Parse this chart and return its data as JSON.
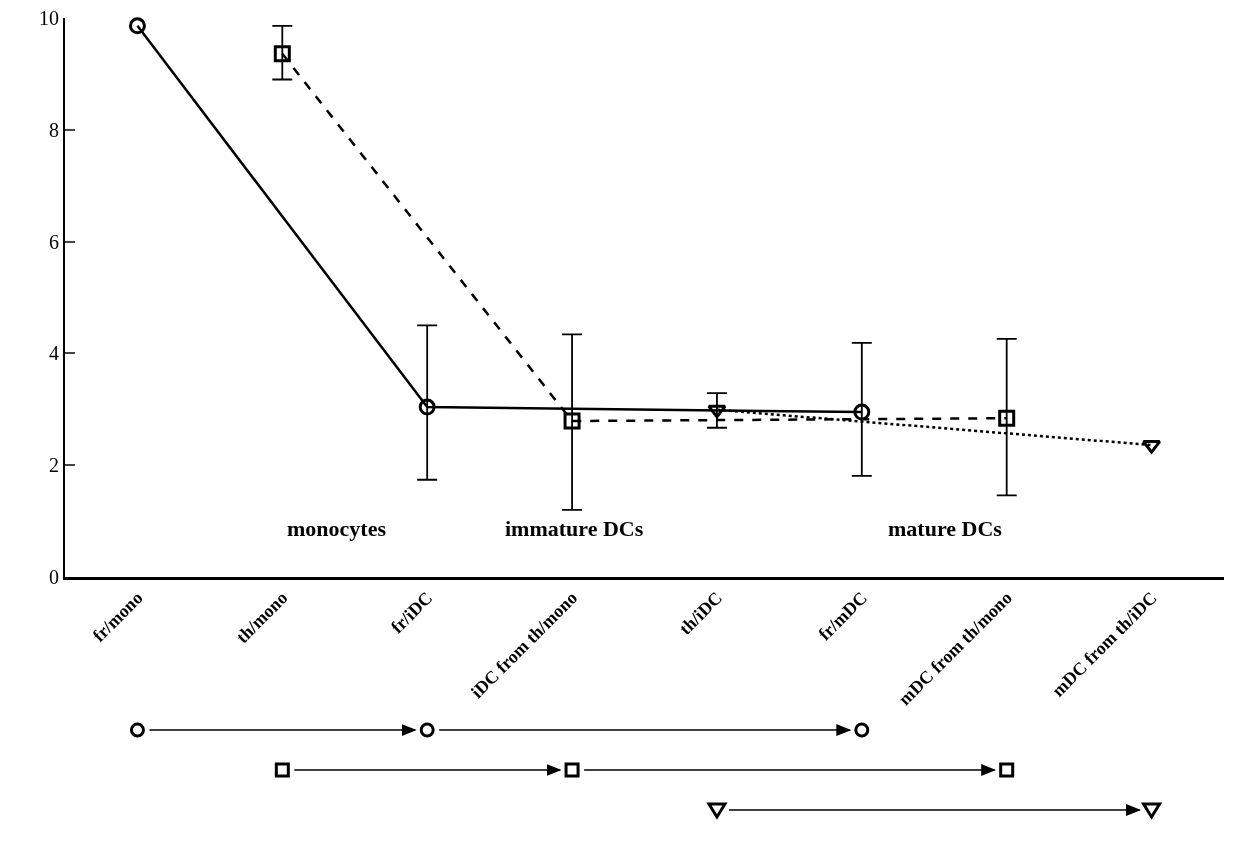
{
  "chart_data": {
    "type": "line",
    "categories": [
      "fr/mono",
      "th/mono",
      "fr/iDC",
      "iDC from th/mono",
      "th/iDC",
      "fr/mDC",
      "mDC from th/mono",
      "mDC from th/iDC"
    ],
    "series": [
      {
        "color": "#000000",
        "marker": "circle",
        "line_style": "solid",
        "values": [
          9.86,
          null,
          3.04,
          null,
          null,
          2.95,
          null,
          null
        ],
        "errors": [
          null,
          null,
          [
            1.74,
            4.5
          ],
          null,
          null,
          [
            1.81,
            4.19
          ],
          null,
          null
        ]
      },
      {
        "color": "#000000",
        "marker": "square",
        "line_style": "dashed",
        "values": [
          null,
          9.36,
          null,
          2.79,
          null,
          null,
          2.84,
          null
        ],
        "errors": [
          null,
          [
            8.9,
            9.86
          ],
          null,
          [
            1.2,
            4.34
          ],
          null,
          null,
          [
            1.46,
            4.26
          ],
          null
        ]
      },
      {
        "color": "#000000",
        "marker": "triangle",
        "line_style": "dotted",
        "values": [
          null,
          null,
          null,
          null,
          2.99,
          null,
          null,
          2.36
        ],
        "errors": [
          null,
          null,
          null,
          null,
          [
            2.67,
            3.29
          ],
          null,
          null,
          null
        ]
      }
    ],
    "ylim": [
      0,
      10
    ],
    "yticks": [
      0,
      2,
      4,
      6,
      8,
      10
    ],
    "grid": false,
    "annotations": [
      "monocytes",
      "immature DCs",
      "mature DCs"
    ]
  }
}
